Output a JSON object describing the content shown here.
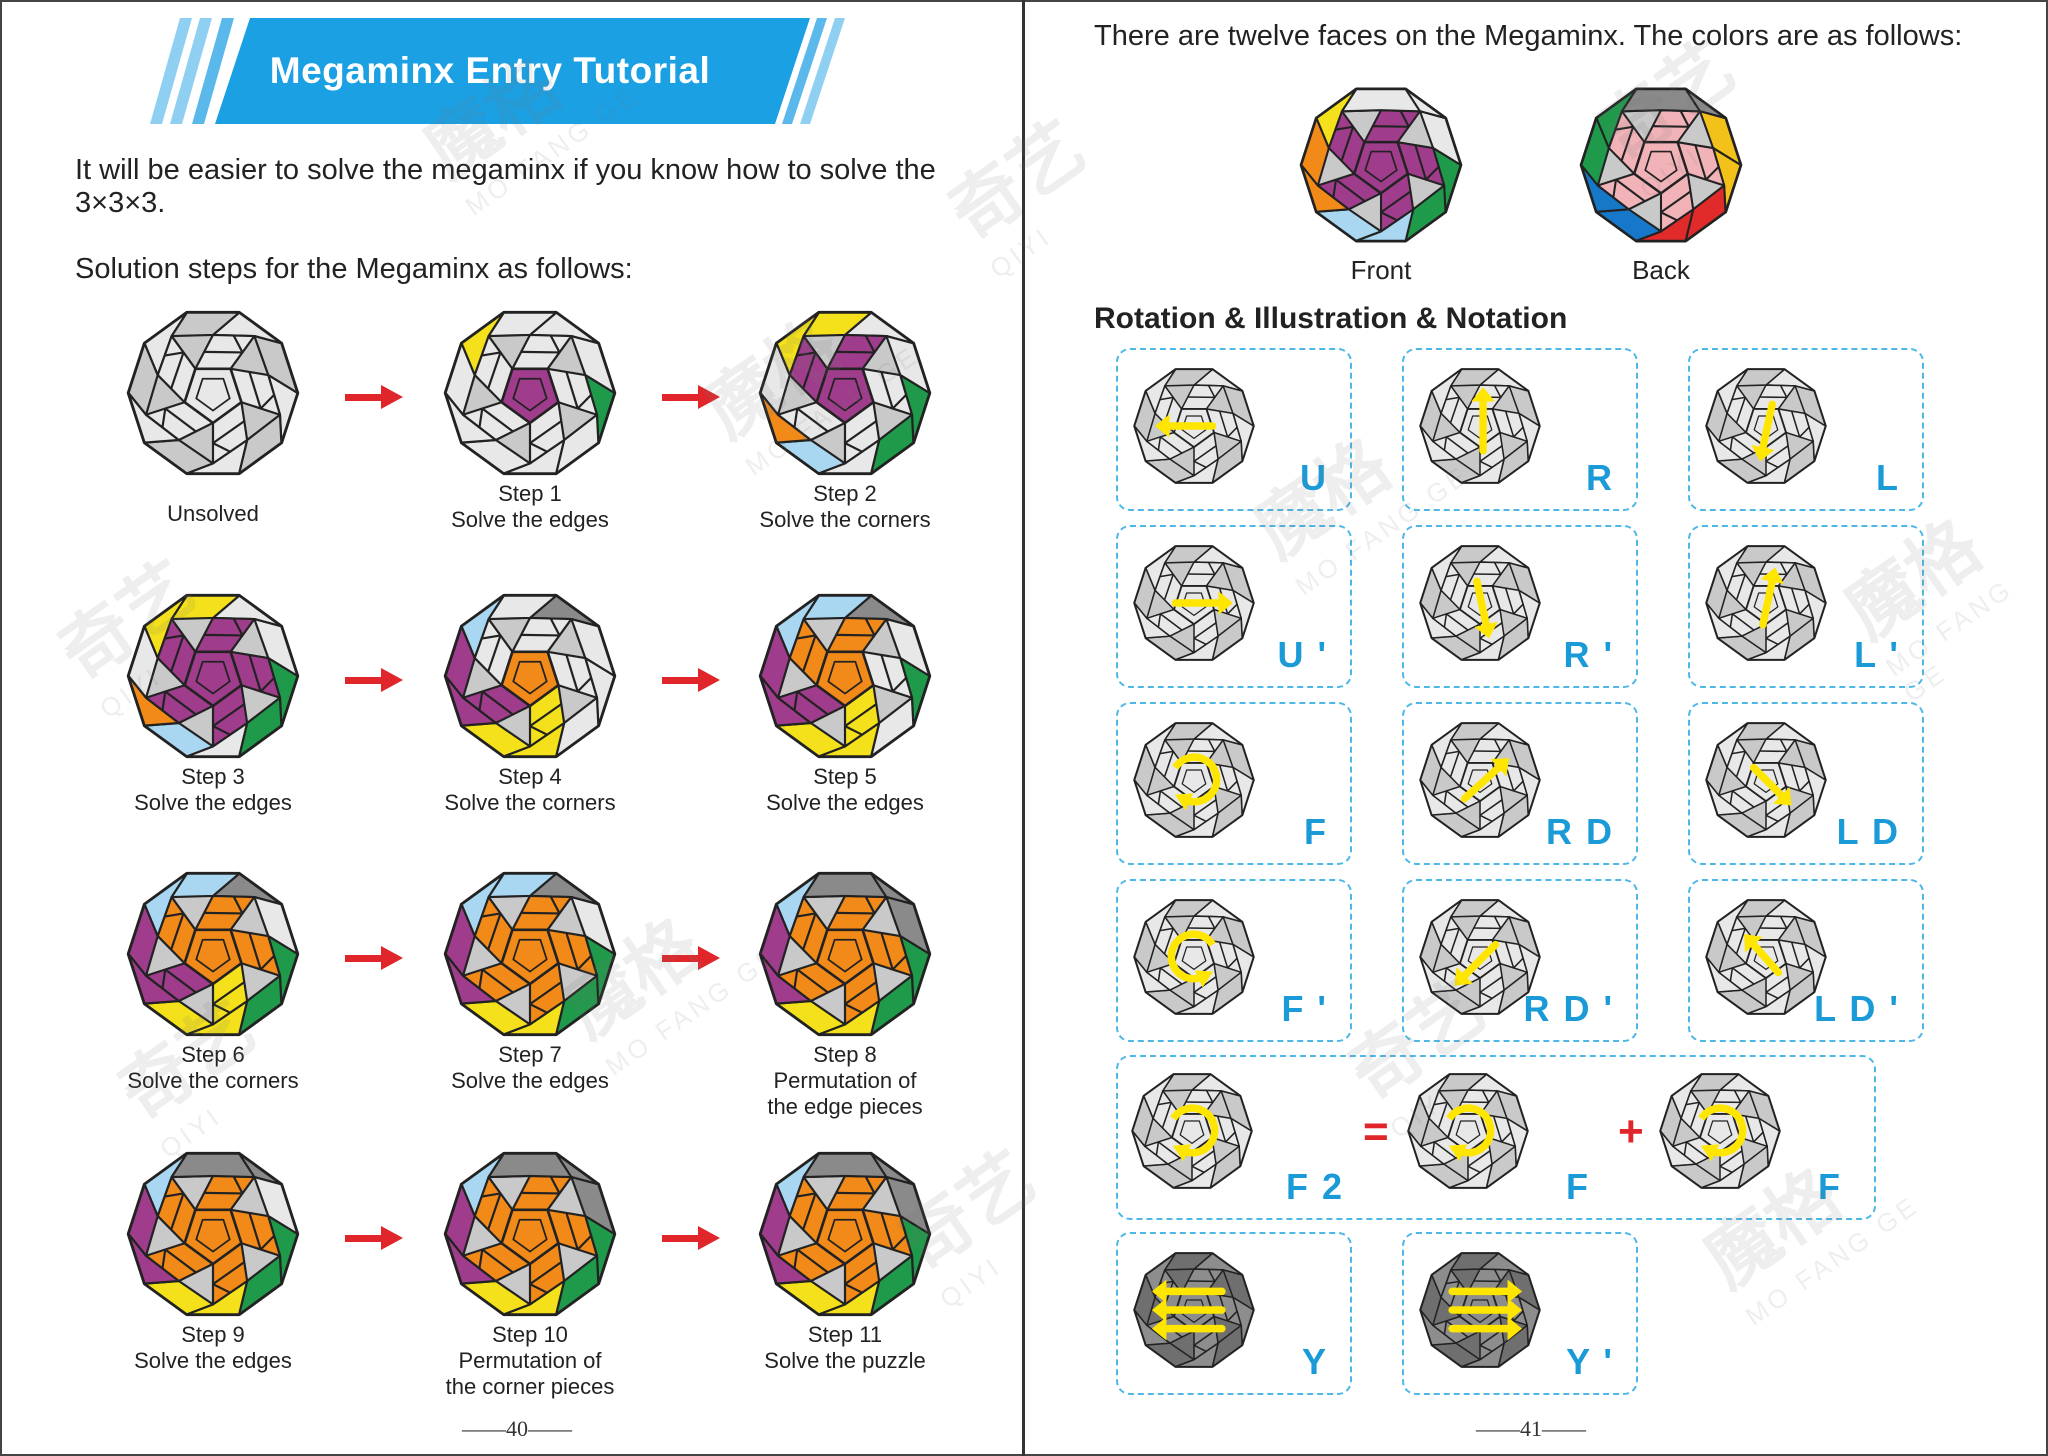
{
  "left_page": {
    "title": "Megaminx Entry Tutorial",
    "intro": "It will be easier to solve the megaminx if you know how to solve the 3×3×3.",
    "steps_heading": "Solution steps for the Megaminx as follows:",
    "steps": [
      {
        "line1": "",
        "line2": "Unsolved"
      },
      {
        "line1": "Step 1",
        "line2": "Solve the edges"
      },
      {
        "line1": "Step 2",
        "line2": "Solve the corners"
      },
      {
        "line1": "Step 3",
        "line2": "Solve the edges"
      },
      {
        "line1": "Step 4",
        "line2": "Solve the corners"
      },
      {
        "line1": "Step 5",
        "line2": "Solve the edges"
      },
      {
        "line1": "Step 6",
        "line2": "Solve the corners"
      },
      {
        "line1": "Step 7",
        "line2": "Solve the edges"
      },
      {
        "line1": "Step 8",
        "line2": "Permutation of",
        "line3": "the edge pieces"
      },
      {
        "line1": "Step 9",
        "line2": "Solve the edges"
      },
      {
        "line1": "Step 10",
        "line2": "Permutation of",
        "line3": "the corner pieces"
      },
      {
        "line1": "Step 11",
        "line2": "Solve the puzzle"
      }
    ],
    "page_number": "——40——"
  },
  "right_page": {
    "faces_text": "There are twelve faces on the Megaminx. The colors are as follows:",
    "front_label": "Front",
    "back_label": "Back",
    "section_title": "Rotation & Illustration & Notation",
    "notations": [
      "U",
      "R",
      "L",
      "U '",
      "R '",
      "L '",
      "F",
      "R D",
      "L D",
      "F '",
      "R D '",
      "L D '"
    ],
    "f2": {
      "label": "F 2",
      "equals": "=",
      "plus": "+",
      "left": "F",
      "right": "F"
    },
    "y_moves": [
      "Y",
      "Y '"
    ],
    "page_number": "——41——"
  },
  "watermark": {
    "cn1": "魔格",
    "cn2": "奇艺",
    "latin1": "MO FANG GE",
    "latin2": "QIYI"
  },
  "colors": {
    "banner_blue": "#1aa0e3",
    "notation_blue": "#1a9ad6",
    "arrow_red": "#e0262b",
    "move_yellow": "#ffe600",
    "purple": "#a03c8c",
    "orange": "#f28a1a",
    "yellow": "#f4e11c",
    "green": "#1f9a4a",
    "light_blue": "#a9d6f0",
    "pink": "#f2b3b8",
    "blue": "#1778c9",
    "red": "#e12a2a",
    "gray": "#b8b8b8",
    "white": "#e8e8e8"
  }
}
